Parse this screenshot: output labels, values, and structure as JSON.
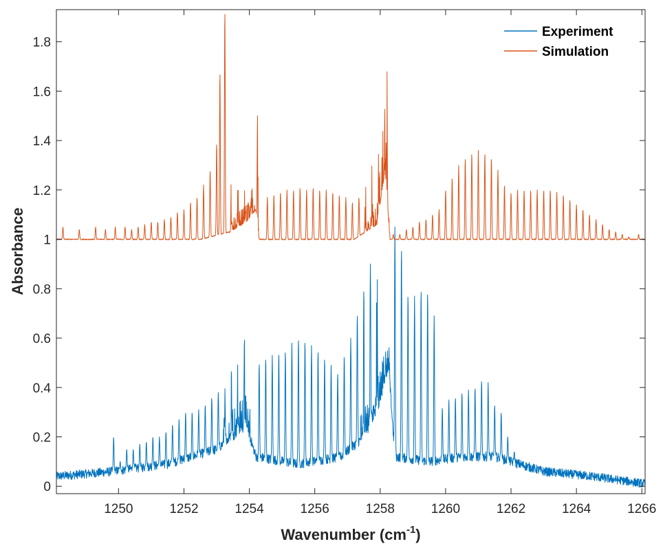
{
  "chart_data": {
    "type": "line",
    "xlabel_main": "Wavenumber (cm",
    "xlabel_sup": "-1",
    "xlabel_close": ")",
    "ylabel": "Absorbance",
    "xlim": [
      1248.1,
      1266.1
    ],
    "ylim": [
      -0.03,
      1.93
    ],
    "xticks": [
      1250,
      1252,
      1254,
      1256,
      1258,
      1260,
      1262,
      1264,
      1266
    ],
    "xtick_labels": [
      "1250",
      "1252",
      "1254",
      "1256",
      "1258",
      "1260",
      "1262",
      "1264",
      "1266"
    ],
    "yticks": [
      0,
      0.2,
      0.4,
      0.6,
      0.8,
      1,
      1.2,
      1.4,
      1.6,
      1.8
    ],
    "ytick_labels": [
      "0",
      "0.2",
      "0.4",
      "0.6",
      "0.8",
      "1",
      "1.2",
      "1.4",
      "1.6",
      "1.8"
    ],
    "grid": false,
    "legend_position": "top-right",
    "series": [
      {
        "name": "Experiment",
        "color": "#0072BD",
        "baseline_points": [
          [
            1248.1,
            0.04
          ],
          [
            1249.8,
            0.06
          ],
          [
            1251.5,
            0.09
          ],
          [
            1253.0,
            0.15
          ],
          [
            1253.9,
            0.25
          ],
          [
            1254.2,
            0.12
          ],
          [
            1255.5,
            0.09
          ],
          [
            1256.8,
            0.12
          ],
          [
            1257.5,
            0.2
          ],
          [
            1258.0,
            0.35
          ],
          [
            1258.25,
            0.5
          ],
          [
            1258.45,
            0.12
          ],
          [
            1259.5,
            0.1
          ],
          [
            1260.5,
            0.12
          ],
          [
            1261.5,
            0.12
          ],
          [
            1262.0,
            0.1
          ],
          [
            1263.0,
            0.06
          ],
          [
            1264.5,
            0.04
          ],
          [
            1266.1,
            0.01
          ]
        ],
        "peaks": [
          [
            1249.85,
            0.2
          ],
          [
            1250.05,
            0.1
          ],
          [
            1250.25,
            0.15
          ],
          [
            1250.45,
            0.15
          ],
          [
            1250.65,
            0.17
          ],
          [
            1250.85,
            0.18
          ],
          [
            1251.05,
            0.2
          ],
          [
            1251.25,
            0.2
          ],
          [
            1251.45,
            0.22
          ],
          [
            1251.65,
            0.25
          ],
          [
            1251.85,
            0.27
          ],
          [
            1252.05,
            0.3
          ],
          [
            1252.25,
            0.3
          ],
          [
            1252.45,
            0.31
          ],
          [
            1252.65,
            0.33
          ],
          [
            1252.85,
            0.36
          ],
          [
            1253.05,
            0.38
          ],
          [
            1253.25,
            0.4
          ],
          [
            1253.45,
            0.47
          ],
          [
            1253.65,
            0.55
          ],
          [
            1253.85,
            0.6
          ],
          [
            1254.3,
            0.5
          ],
          [
            1254.5,
            0.52
          ],
          [
            1254.7,
            0.53
          ],
          [
            1254.9,
            0.54
          ],
          [
            1255.1,
            0.55
          ],
          [
            1255.3,
            0.58
          ],
          [
            1255.5,
            0.6
          ],
          [
            1255.7,
            0.59
          ],
          [
            1255.9,
            0.57
          ],
          [
            1256.1,
            0.55
          ],
          [
            1256.3,
            0.52
          ],
          [
            1256.5,
            0.49
          ],
          [
            1256.7,
            0.46
          ],
          [
            1256.9,
            0.53
          ],
          [
            1257.1,
            0.6
          ],
          [
            1257.3,
            0.7
          ],
          [
            1257.5,
            0.8
          ],
          [
            1257.7,
            0.9
          ],
          [
            1257.9,
            1.05
          ],
          [
            1258.45,
            1.05
          ],
          [
            1258.65,
            0.97
          ],
          [
            1258.85,
            0.78
          ],
          [
            1259.05,
            0.77
          ],
          [
            1259.25,
            0.8
          ],
          [
            1259.45,
            0.79
          ],
          [
            1259.65,
            0.69
          ],
          [
            1259.9,
            0.32
          ],
          [
            1260.1,
            0.35
          ],
          [
            1260.3,
            0.36
          ],
          [
            1260.5,
            0.38
          ],
          [
            1260.7,
            0.39
          ],
          [
            1260.9,
            0.4
          ],
          [
            1261.1,
            0.43
          ],
          [
            1261.3,
            0.42
          ],
          [
            1261.5,
            0.33
          ],
          [
            1261.7,
            0.3
          ],
          [
            1261.9,
            0.2
          ],
          [
            1262.1,
            0.14
          ]
        ]
      },
      {
        "name": "Simulation",
        "color": "#D95319",
        "baseline_points": [
          [
            1248.1,
            1.0
          ],
          [
            1252.5,
            1.0
          ],
          [
            1253.4,
            1.03
          ],
          [
            1253.9,
            1.07
          ],
          [
            1254.2,
            1.12
          ],
          [
            1254.3,
            1.0
          ],
          [
            1257.2,
            1.0
          ],
          [
            1257.9,
            1.06
          ],
          [
            1258.15,
            1.28
          ],
          [
            1258.3,
            1.0
          ],
          [
            1266.1,
            1.0
          ]
        ],
        "peaks": [
          [
            1248.3,
            1.05
          ],
          [
            1248.8,
            1.04
          ],
          [
            1249.3,
            1.05
          ],
          [
            1249.6,
            1.04
          ],
          [
            1249.9,
            1.05
          ],
          [
            1250.2,
            1.05
          ],
          [
            1250.4,
            1.04
          ],
          [
            1250.6,
            1.05
          ],
          [
            1250.8,
            1.06
          ],
          [
            1251.0,
            1.07
          ],
          [
            1251.2,
            1.07
          ],
          [
            1251.4,
            1.08
          ],
          [
            1251.6,
            1.09
          ],
          [
            1251.8,
            1.11
          ],
          [
            1252.0,
            1.12
          ],
          [
            1252.2,
            1.15
          ],
          [
            1252.4,
            1.17
          ],
          [
            1252.6,
            1.22
          ],
          [
            1252.8,
            1.28
          ],
          [
            1253.0,
            1.39
          ],
          [
            1253.1,
            1.68
          ],
          [
            1253.25,
            1.93
          ],
          [
            1253.45,
            1.3
          ],
          [
            1253.65,
            1.23
          ],
          [
            1253.85,
            1.2
          ],
          [
            1254.05,
            1.15
          ],
          [
            1254.25,
            1.5
          ],
          [
            1254.55,
            1.17
          ],
          [
            1254.75,
            1.18
          ],
          [
            1254.95,
            1.19
          ],
          [
            1255.15,
            1.2
          ],
          [
            1255.35,
            1.2
          ],
          [
            1255.55,
            1.21
          ],
          [
            1255.75,
            1.2
          ],
          [
            1255.95,
            1.21
          ],
          [
            1256.15,
            1.2
          ],
          [
            1256.35,
            1.2
          ],
          [
            1256.55,
            1.19
          ],
          [
            1256.75,
            1.18
          ],
          [
            1256.95,
            1.17
          ],
          [
            1257.15,
            1.15
          ],
          [
            1257.35,
            1.17
          ],
          [
            1257.55,
            1.25
          ],
          [
            1257.75,
            1.32
          ],
          [
            1257.95,
            1.35
          ],
          [
            1258.2,
            1.89
          ],
          [
            1258.4,
            1.02
          ],
          [
            1258.6,
            1.02
          ],
          [
            1258.8,
            1.04
          ],
          [
            1259.0,
            1.05
          ],
          [
            1259.2,
            1.07
          ],
          [
            1259.4,
            1.08
          ],
          [
            1259.6,
            1.1
          ],
          [
            1259.8,
            1.12
          ],
          [
            1260.0,
            1.2
          ],
          [
            1260.2,
            1.25
          ],
          [
            1260.4,
            1.3
          ],
          [
            1260.6,
            1.33
          ],
          [
            1260.8,
            1.35
          ],
          [
            1261.0,
            1.36
          ],
          [
            1261.2,
            1.35
          ],
          [
            1261.4,
            1.33
          ],
          [
            1261.6,
            1.28
          ],
          [
            1261.8,
            1.22
          ],
          [
            1262.0,
            1.19
          ],
          [
            1262.2,
            1.2
          ],
          [
            1262.4,
            1.2
          ],
          [
            1262.6,
            1.2
          ],
          [
            1262.8,
            1.2
          ],
          [
            1263.0,
            1.2
          ],
          [
            1263.2,
            1.2
          ],
          [
            1263.4,
            1.19
          ],
          [
            1263.6,
            1.18
          ],
          [
            1263.8,
            1.16
          ],
          [
            1264.0,
            1.14
          ],
          [
            1264.2,
            1.12
          ],
          [
            1264.4,
            1.1
          ],
          [
            1264.6,
            1.08
          ],
          [
            1264.8,
            1.06
          ],
          [
            1265.0,
            1.04
          ],
          [
            1265.2,
            1.03
          ],
          [
            1265.4,
            1.02
          ],
          [
            1265.6,
            1.01
          ],
          [
            1265.9,
            1.02
          ]
        ]
      }
    ]
  }
}
